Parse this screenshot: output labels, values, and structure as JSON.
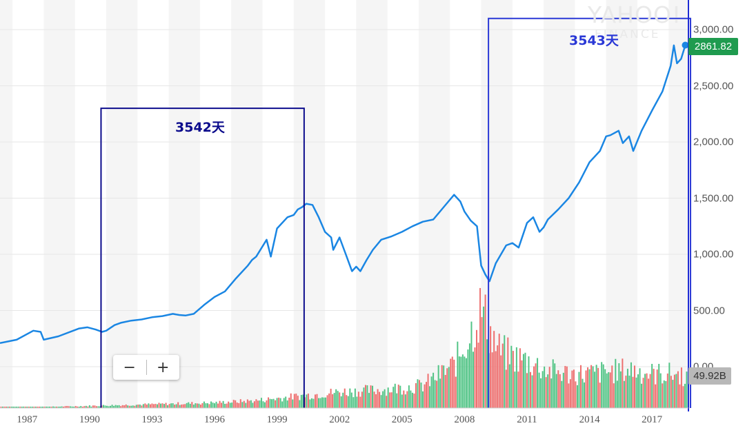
{
  "watermark": {
    "line1": "YAHOO!",
    "line2": "FINANCE"
  },
  "zoom": {
    "minus": "−",
    "plus": "+"
  },
  "current_price_label": "2861.82",
  "current_volume_label": "49.92B",
  "annotations": [
    {
      "text": "3542天",
      "color": "#0b0b8c"
    },
    {
      "text": "3543天",
      "color": "#2a38d6"
    }
  ],
  "colors": {
    "price_line": "#1a86e3",
    "volume_up": "#52c486",
    "volume_down": "#ee6f6f",
    "box1": "#0b0b8c",
    "box2": "#2a38d6",
    "price_badge": "#1f9b4f",
    "band": "#f5f5f5"
  },
  "chart_data": {
    "type": "line",
    "title": "",
    "xlabel": "",
    "ylabel": "",
    "x_tick_labels": [
      "1987",
      "1990",
      "1993",
      "1996",
      "1999",
      "2002",
      "2005",
      "2008",
      "2011",
      "2014",
      "2017"
    ],
    "y_tick_labels": [
      "0.00",
      "500.00",
      "1,000.00",
      "1,500.00",
      "2,000.00",
      "2,500.00",
      "3,000.00"
    ],
    "y_ticks": [
      0,
      500,
      1000,
      1500,
      2000,
      2500,
      3000
    ],
    "ylim": [
      -350,
      3100
    ],
    "xlim": [
      1985.7,
      2018.75
    ],
    "grid": true,
    "series": [
      {
        "x": [
          1985.7,
          1986.5,
          1987.3,
          1987.65,
          1987.8,
          1988.5,
          1989.5,
          1989.9,
          1990.3,
          1990.6,
          1990.8,
          1991.2,
          1991.5,
          1992.0,
          1992.5,
          1993.0,
          1993.5,
          1994.0,
          1994.3,
          1994.6,
          1995.0,
          1995.5,
          1996.0,
          1996.5,
          1997.0,
          1997.6,
          1997.8,
          1998.0,
          1998.5,
          1998.7,
          1999.0,
          1999.5,
          1999.8,
          2000.0,
          2000.2,
          2000.4,
          2000.7,
          2001.0,
          2001.3,
          2001.6,
          2001.7,
          2002.0,
          2002.3,
          2002.6,
          2002.8,
          2003.0,
          2003.3,
          2003.6,
          2004.0,
          2004.5,
          2005.0,
          2005.5,
          2006.0,
          2006.5,
          2007.0,
          2007.5,
          2007.8,
          2008.0,
          2008.3,
          2008.6,
          2008.8,
          2009.0,
          2009.2,
          2009.5,
          2010.0,
          2010.3,
          2010.6,
          2011.0,
          2011.3,
          2011.6,
          2011.8,
          2012.0,
          2012.5,
          2013.0,
          2013.5,
          2014.0,
          2014.5,
          2014.8,
          2015.0,
          2015.4,
          2015.6,
          2015.9,
          2016.1,
          2016.5,
          2017.0,
          2017.5,
          2017.9,
          2018.05,
          2018.2,
          2018.4,
          2018.6
        ],
        "y": [
          210,
          240,
          320,
          310,
          240,
          270,
          340,
          350,
          330,
          310,
          320,
          370,
          390,
          410,
          420,
          440,
          450,
          470,
          460,
          455,
          470,
          550,
          620,
          670,
          780,
          900,
          950,
          980,
          1130,
          980,
          1230,
          1330,
          1350,
          1400,
          1420,
          1450,
          1440,
          1330,
          1200,
          1150,
          1040,
          1150,
          1000,
          850,
          890,
          850,
          950,
          1040,
          1130,
          1160,
          1200,
          1250,
          1290,
          1310,
          1420,
          1530,
          1470,
          1380,
          1300,
          1250,
          900,
          820,
          760,
          920,
          1080,
          1100,
          1060,
          1280,
          1330,
          1200,
          1240,
          1310,
          1400,
          1500,
          1640,
          1820,
          1920,
          2050,
          2060,
          2100,
          1990,
          2050,
          1920,
          2100,
          2280,
          2450,
          2680,
          2860,
          2700,
          2740,
          2861.82
        ]
      }
    ],
    "volume": {
      "labels": [
        "0.00",
        "49.92B"
      ],
      "x": [
        1985.8,
        1988.0,
        1990.0,
        1992.0,
        1994.0,
        1996.0,
        1998.0,
        2000.0,
        2002.0,
        2004.0,
        2006.0,
        2007.5,
        2008.3,
        2008.8,
        2009.2,
        2009.6,
        2010.0,
        2011.0,
        2012.0,
        2013.0,
        2014.0,
        2015.0,
        2016.0,
        2017.0,
        2018.0,
        2018.7
      ],
      "relative_height": [
        0.01,
        0.01,
        0.02,
        0.03,
        0.04,
        0.05,
        0.07,
        0.11,
        0.15,
        0.17,
        0.21,
        0.4,
        0.7,
        0.93,
        0.72,
        0.55,
        0.5,
        0.44,
        0.35,
        0.32,
        0.32,
        0.34,
        0.36,
        0.32,
        0.32,
        0.3
      ]
    },
    "annotation_boxes": [
      {
        "x_start": 1990.55,
        "x_end": 2000.3,
        "y_top": 2300,
        "label": "3542天"
      },
      {
        "x_start": 2009.15,
        "x_end": 2018.85,
        "y_top": 3100,
        "label": "3543天"
      }
    ]
  }
}
